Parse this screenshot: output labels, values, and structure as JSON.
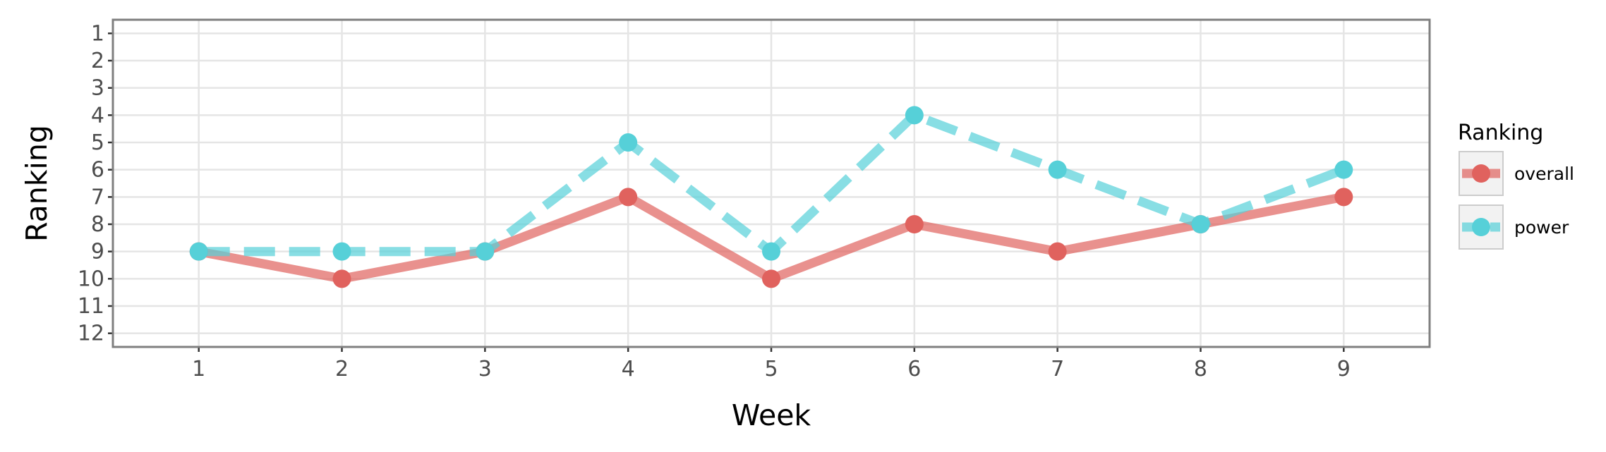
{
  "chart_data": {
    "type": "line",
    "xlabel": "Week",
    "ylabel": "Ranking",
    "x": [
      1,
      2,
      3,
      4,
      5,
      6,
      7,
      8,
      9
    ],
    "xlim": [
      0.4,
      9.6
    ],
    "ylim": [
      12.5,
      0.5
    ],
    "y_reversed": true,
    "x_ticks": [
      1,
      2,
      3,
      4,
      5,
      6,
      7,
      8,
      9
    ],
    "y_ticks": [
      1,
      2,
      3,
      4,
      5,
      6,
      7,
      8,
      9,
      10,
      11,
      12
    ],
    "grid": true,
    "legend": {
      "title": "Ranking",
      "position": "right"
    },
    "series": [
      {
        "name": "overall",
        "values": [
          9,
          10,
          9,
          7,
          10,
          8,
          9,
          8,
          7
        ],
        "color": "#E0625E",
        "line_style": "solid"
      },
      {
        "name": "power",
        "values": [
          9,
          9,
          9,
          5,
          9,
          4,
          6,
          8,
          6
        ],
        "color": "#56D0D8",
        "line_style": "dashed"
      }
    ]
  }
}
